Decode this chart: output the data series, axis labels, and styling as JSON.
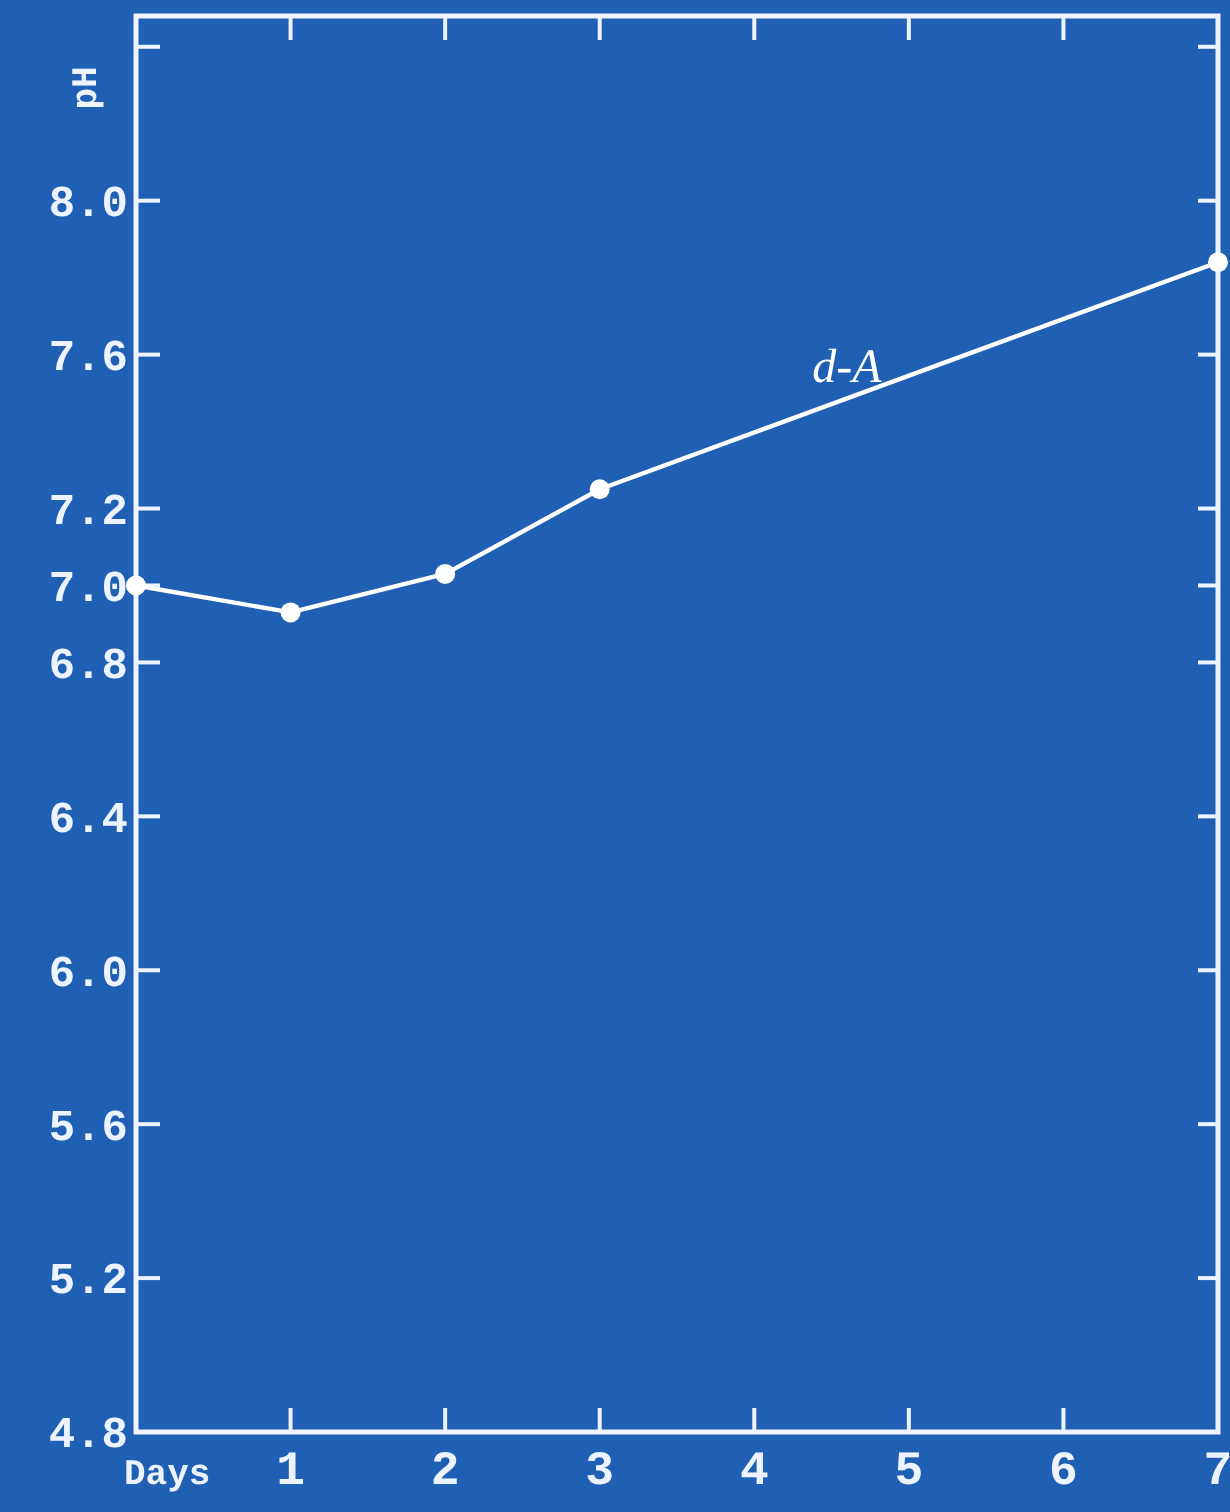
{
  "chart_data": {
    "type": "line",
    "xlabel": "Days",
    "ylabel": "pH",
    "x": [
      0,
      1,
      2,
      3,
      7
    ],
    "series": [
      {
        "name": "d-A",
        "color": "#ffffff",
        "values": [
          7.0,
          6.93,
          7.03,
          7.25,
          7.84
        ]
      }
    ],
    "xlim": [
      0,
      7
    ],
    "xticks": [
      {
        "value": 0,
        "label": null
      },
      1,
      2,
      3,
      4,
      5,
      6,
      7
    ],
    "ylim": [
      4.8,
      8.48
    ],
    "yticks": [
      4.8,
      5.2,
      5.6,
      {
        "value": 6,
        "label": "6.0"
      },
      6.4,
      6.8,
      {
        "value": 7,
        "label": "7.0"
      },
      7.2,
      7.6,
      {
        "value": 8,
        "label": "8.0"
      },
      {
        "value": 8.4,
        "label": null
      }
    ],
    "marker": "circle",
    "line_style": "solid",
    "grid": false
  }
}
